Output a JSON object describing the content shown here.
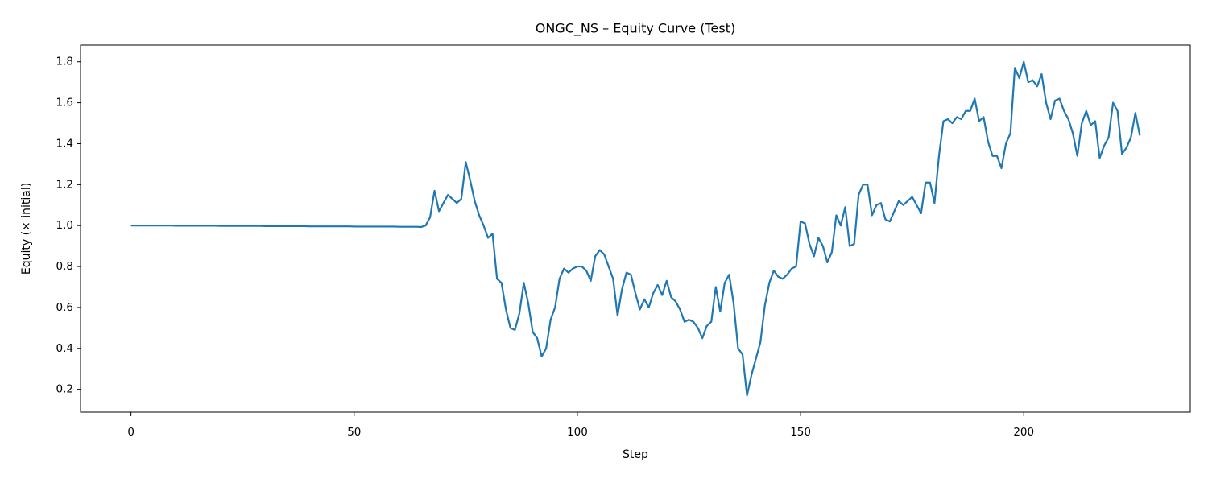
{
  "chart_data": {
    "type": "line",
    "title": "ONGC_NS – Equity Curve (Test)",
    "x_label": "Step",
    "y_label": "Equity (× initial)",
    "color": "#1f77b4",
    "xlim": [
      -11.3,
      237.3
    ],
    "ylim": [
      0.0885,
      1.8815
    ],
    "xticks": [
      0,
      50,
      100,
      150,
      200
    ],
    "yticks": [
      0.2,
      0.4,
      0.6,
      0.8,
      {
        "value": 1,
        "label": "1.0"
      },
      1.2,
      1.4,
      1.6,
      1.8
    ],
    "x": [
      0,
      1,
      2,
      3,
      4,
      5,
      6,
      7,
      8,
      9,
      10,
      11,
      12,
      13,
      14,
      15,
      16,
      17,
      18,
      19,
      20,
      21,
      22,
      23,
      24,
      25,
      26,
      27,
      28,
      29,
      30,
      31,
      32,
      33,
      34,
      35,
      36,
      37,
      38,
      39,
      40,
      41,
      42,
      43,
      44,
      45,
      46,
      47,
      48,
      49,
      50,
      51,
      52,
      53,
      54,
      55,
      56,
      57,
      58,
      59,
      60,
      61,
      62,
      63,
      64,
      65,
      66,
      67,
      68,
      69,
      70,
      71,
      72,
      73,
      74,
      75,
      76,
      77,
      78,
      79,
      80,
      81,
      82,
      83,
      84,
      85,
      86,
      87,
      88,
      89,
      90,
      91,
      92,
      93,
      94,
      95,
      96,
      97,
      98,
      99,
      100,
      101,
      102,
      103,
      104,
      105,
      106,
      107,
      108,
      109,
      110,
      111,
      112,
      113,
      114,
      115,
      116,
      117,
      118,
      119,
      120,
      121,
      122,
      123,
      124,
      125,
      126,
      127,
      128,
      129,
      130,
      131,
      132,
      133,
      134,
      135,
      136,
      137,
      138,
      139,
      140,
      141,
      142,
      143,
      144,
      145,
      146,
      147,
      148,
      149,
      150,
      151,
      152,
      153,
      154,
      155,
      156,
      157,
      158,
      159,
      160,
      161,
      162,
      163,
      164,
      165,
      166,
      167,
      168,
      169,
      170,
      171,
      172,
      173,
      174,
      175,
      176,
      177,
      178,
      179,
      180,
      181,
      182,
      183,
      184,
      185,
      186,
      187,
      188,
      189,
      190,
      191,
      192,
      193,
      194,
      195,
      196,
      197,
      198,
      199,
      200,
      201,
      202,
      203,
      204,
      205,
      206,
      207,
      208,
      209,
      210,
      211,
      212,
      213,
      214,
      215,
      216,
      217,
      218,
      219,
      220,
      221,
      222,
      223,
      224,
      225,
      226
    ],
    "values": [
      1.0,
      1.0,
      1.0,
      1.0,
      1.0,
      1.0,
      1.0,
      1.0,
      1.0,
      1.0,
      0.999,
      0.999,
      0.999,
      0.999,
      0.999,
      0.999,
      0.999,
      0.999,
      0.999,
      0.999,
      0.998,
      0.998,
      0.998,
      0.998,
      0.998,
      0.998,
      0.998,
      0.998,
      0.998,
      0.998,
      0.997,
      0.997,
      0.997,
      0.997,
      0.997,
      0.997,
      0.997,
      0.997,
      0.997,
      0.997,
      0.996,
      0.996,
      0.996,
      0.996,
      0.996,
      0.996,
      0.996,
      0.996,
      0.996,
      0.996,
      0.995,
      0.995,
      0.995,
      0.995,
      0.995,
      0.995,
      0.995,
      0.995,
      0.995,
      0.995,
      0.994,
      0.994,
      0.994,
      0.994,
      0.994,
      0.993,
      1.0,
      1.04,
      1.17,
      1.07,
      1.11,
      1.15,
      1.13,
      1.11,
      1.13,
      1.31,
      1.22,
      1.12,
      1.05,
      1.0,
      0.94,
      0.96,
      0.74,
      0.72,
      0.59,
      0.5,
      0.49,
      0.57,
      0.72,
      0.62,
      0.48,
      0.45,
      0.36,
      0.4,
      0.54,
      0.6,
      0.74,
      0.79,
      0.77,
      0.79,
      0.8,
      0.8,
      0.78,
      0.73,
      0.85,
      0.88,
      0.86,
      0.8,
      0.74,
      0.56,
      0.69,
      0.77,
      0.76,
      0.67,
      0.59,
      0.64,
      0.6,
      0.67,
      0.71,
      0.66,
      0.73,
      0.65,
      0.63,
      0.59,
      0.53,
      0.54,
      0.53,
      0.5,
      0.45,
      0.51,
      0.53,
      0.7,
      0.58,
      0.72,
      0.76,
      0.62,
      0.4,
      0.37,
      0.17,
      0.27,
      0.35,
      0.43,
      0.61,
      0.72,
      0.78,
      0.75,
      0.74,
      0.76,
      0.79,
      0.8,
      1.02,
      1.01,
      0.91,
      0.85,
      0.94,
      0.9,
      0.82,
      0.87,
      1.05,
      1.0,
      1.09,
      0.9,
      0.91,
      1.15,
      1.2,
      1.2,
      1.05,
      1.1,
      1.11,
      1.03,
      1.02,
      1.07,
      1.12,
      1.1,
      1.12,
      1.14,
      1.1,
      1.06,
      1.21,
      1.21,
      1.11,
      1.34,
      1.51,
      1.52,
      1.5,
      1.53,
      1.52,
      1.56,
      1.56,
      1.62,
      1.51,
      1.53,
      1.41,
      1.34,
      1.34,
      1.28,
      1.4,
      1.45,
      1.77,
      1.72,
      1.8,
      1.7,
      1.71,
      1.68,
      1.74,
      1.6,
      1.52,
      1.61,
      1.62,
      1.56,
      1.52,
      1.45,
      1.34,
      1.5,
      1.56,
      1.49,
      1.51,
      1.33,
      1.39,
      1.43,
      1.6,
      1.56,
      1.35,
      1.38,
      1.43,
      1.55,
      1.44
    ]
  }
}
